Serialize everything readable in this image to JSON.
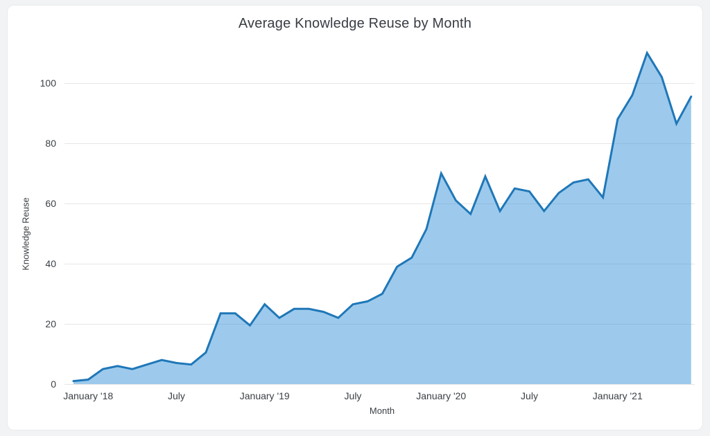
{
  "chart_data": {
    "type": "area",
    "title": "Average Knowledge Reuse by Month",
    "xlabel": "Month",
    "ylabel": "Knowledge Reuse",
    "categories": [
      "Dec '17",
      "Jan '18",
      "Feb '18",
      "Mar '18",
      "Apr '18",
      "May '18",
      "Jun '18",
      "Jul '18",
      "Aug '18",
      "Sep '18",
      "Oct '18",
      "Nov '18",
      "Dec '18",
      "Jan '19",
      "Feb '19",
      "Mar '19",
      "Apr '19",
      "May '19",
      "Jun '19",
      "Jul '19",
      "Aug '19",
      "Sep '19",
      "Oct '19",
      "Nov '19",
      "Dec '19",
      "Jan '20",
      "Feb '20",
      "Mar '20",
      "Apr '20",
      "May '20",
      "Jun '20",
      "Jul '20",
      "Aug '20",
      "Sep '20",
      "Oct '20",
      "Nov '20",
      "Dec '20",
      "Jan '21",
      "Feb '21",
      "Mar '21",
      "Apr '21",
      "May '21",
      "Jun '21"
    ],
    "values": [
      1,
      1.5,
      5,
      6,
      5,
      6.5,
      8,
      7,
      6.5,
      10.5,
      23.5,
      23.5,
      19.5,
      26.5,
      22,
      25,
      25,
      24,
      22,
      26.5,
      27.5,
      30,
      39,
      42,
      51.5,
      70,
      61,
      56.5,
      69,
      57.5,
      65,
      64,
      57.5,
      63.5,
      67,
      68,
      62,
      88,
      96,
      110,
      102,
      86.5,
      95.5
    ],
    "yticks": [
      0,
      20,
      40,
      60,
      80,
      100
    ],
    "ylim": [
      0,
      112
    ],
    "xtick_indices": [
      1,
      7,
      13,
      19,
      25,
      31,
      37
    ],
    "xtick_labels": [
      "January '18",
      "July",
      "January '19",
      "July",
      "January '20",
      "July",
      "January '21"
    ],
    "grid": "horizontal",
    "legend": "none",
    "colors": {
      "line": "#1f77b8",
      "fill": "rgba(59,149,217,0.5)",
      "gridline": "#e6e6e6",
      "text": "#3a3f44",
      "title": "#373d43",
      "card_background": "#ffffff",
      "page_background": "#f1f3f4"
    }
  }
}
